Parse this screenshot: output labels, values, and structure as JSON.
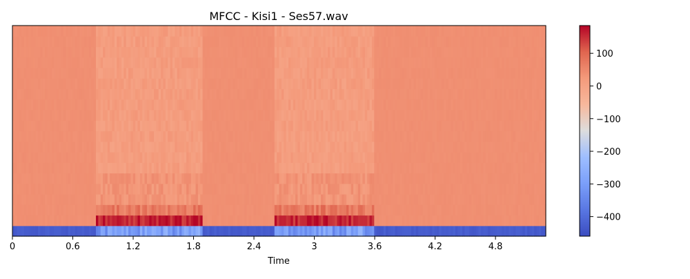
{
  "chart_data": {
    "type": "heatmap",
    "title": "MFCC - Kisi1 - Ses57.wav",
    "xlabel": "Time",
    "ylabel": "",
    "x_ticks": [
      "0",
      "0.6",
      "1.2",
      "1.8",
      "2.4",
      "3",
      "3.6",
      "4.2",
      "4.8"
    ],
    "x_tick_values": [
      0,
      0.6,
      1.2,
      1.8,
      2.4,
      3.0,
      3.6,
      4.2,
      4.8
    ],
    "xlim": [
      0,
      5.3
    ],
    "n_coefficients": 20,
    "colorbar": {
      "ticks": [
        "100",
        "0",
        "−100",
        "−200",
        "−300",
        "−400"
      ],
      "tick_values": [
        100,
        0,
        -100,
        -200,
        -300,
        -400
      ],
      "range": [
        -460,
        185
      ],
      "colormap": "coolwarm"
    },
    "speech_segments": [
      [
        0.82,
        1.88
      ],
      [
        2.6,
        3.6
      ]
    ],
    "baseline": {
      "silence_c0": -430,
      "speech_c0": -300,
      "silence_higher": 40,
      "speech_c1": 160,
      "speech_c2": 75,
      "speech_c3_c5": 30,
      "speech_higher": 15
    },
    "colors": {
      "cold": "#3b4cc0",
      "neutral": "#dddddd",
      "hot": "#b40426",
      "background": "#f4a98a"
    }
  }
}
